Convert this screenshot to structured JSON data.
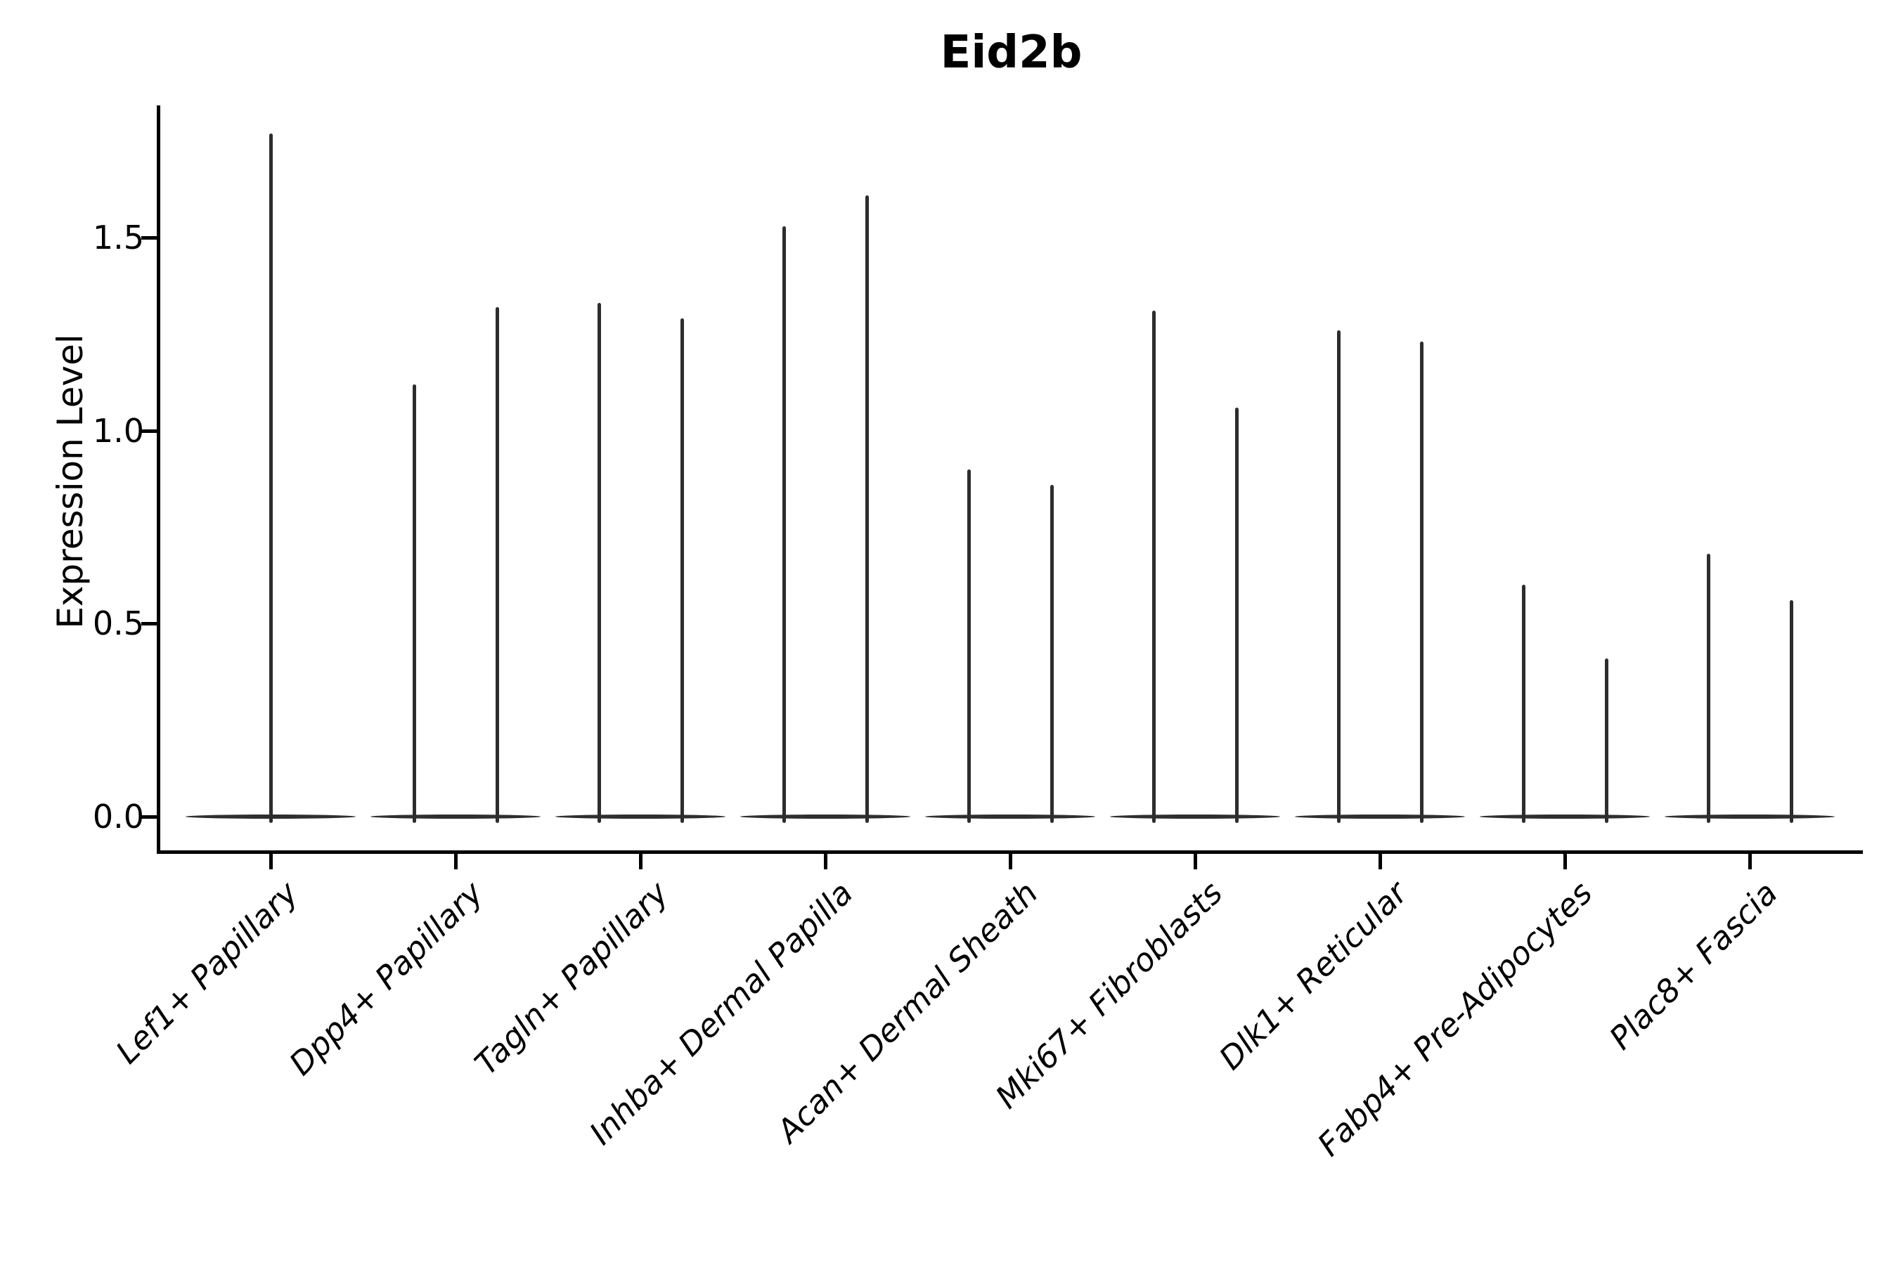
{
  "page": {
    "background": "#ffffff",
    "colors": {
      "violin": "#2d2d2d",
      "axis": "#000000",
      "text": "#000000"
    }
  },
  "chart_data": {
    "type": "violin",
    "title": "Eid2b",
    "xlabel": "",
    "ylabel": "Expression Level",
    "ytick_labels": [
      "0.0",
      "0.5",
      "1.0",
      "1.5"
    ],
    "yticks": [
      0.0,
      0.5,
      1.0,
      1.5
    ],
    "ylim": [
      -0.09,
      1.84
    ],
    "grid": false,
    "legend": "none",
    "spines": [
      "left",
      "bottom"
    ],
    "description": "Each violin is a dense mass at expression 0 (wide flat base) with a thin vertical spike up to the maximum expression value; categories 2-9 each contain two violins side by side, category 1 contains a single centered violin.",
    "categories": [
      "Lef1+ Papillary",
      "Dpp4+ Papillary",
      "Tagln+ Papillary",
      "Inhba+ Dermal Papilla",
      "Acan+ Dermal Sheath",
      "Mki67+ Fibroblasts",
      "Dlk1+ Reticular",
      "Fabp4+ Pre-Adipocytes",
      "Plac8+ Fascia"
    ],
    "violins": [
      {
        "category": "Lef1+ Papillary",
        "peaks": [
          1.77
        ],
        "base_value": 0.0
      },
      {
        "category": "Dpp4+ Papillary",
        "peaks": [
          1.12,
          1.32
        ],
        "base_value": 0.0
      },
      {
        "category": "Tagln+ Papillary",
        "peaks": [
          1.33,
          1.29
        ],
        "base_value": 0.0
      },
      {
        "category": "Inhba+ Dermal Papilla",
        "peaks": [
          1.53,
          1.61
        ],
        "base_value": 0.0
      },
      {
        "category": "Acan+ Dermal Sheath",
        "peaks": [
          0.9,
          0.86
        ],
        "base_value": 0.0
      },
      {
        "category": "Mki67+ Fibroblasts",
        "peaks": [
          1.31,
          1.06
        ],
        "base_value": 0.0
      },
      {
        "category": "Dlk1+ Reticular",
        "peaks": [
          1.26,
          1.23
        ],
        "base_value": 0.0
      },
      {
        "category": "Fabp4+ Pre-Adipocytes",
        "peaks": [
          0.6,
          0.41
        ],
        "base_value": 0.0
      },
      {
        "category": "Plac8+ Fascia",
        "peaks": [
          0.68,
          0.56
        ],
        "base_value": 0.0
      }
    ]
  }
}
